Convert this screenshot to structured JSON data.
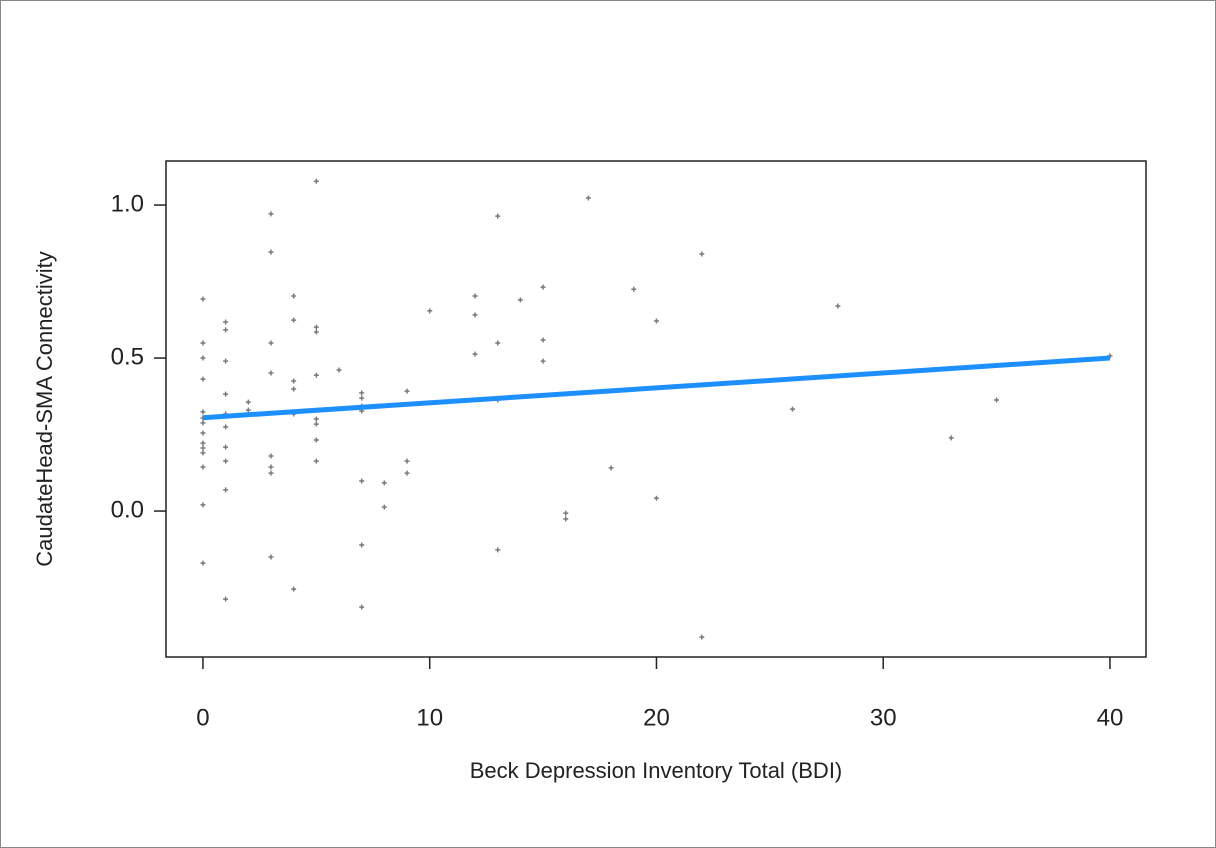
{
  "chart_data": {
    "type": "scatter",
    "xlabel": "Beck Depression Inventory Total (BDI)",
    "ylabel": "CaudateHead-SMA Connectivity",
    "x": [
      0,
      0,
      0,
      0,
      0,
      0,
      0,
      0,
      0,
      0,
      0,
      0,
      0,
      0,
      1,
      1,
      1,
      1,
      1,
      1,
      1,
      1,
      1,
      1,
      2,
      2,
      3,
      3,
      3,
      3,
      3,
      3,
      3,
      3,
      4,
      4,
      4,
      4,
      4,
      4,
      5,
      5,
      5,
      5,
      5,
      5,
      5,
      5,
      6,
      7,
      7,
      7,
      7,
      7,
      7,
      7,
      8,
      8,
      9,
      9,
      9,
      10,
      12,
      12,
      12,
      13,
      13,
      13,
      13,
      14,
      15,
      15,
      15,
      16,
      16,
      17,
      18,
      19,
      20,
      20,
      22,
      22,
      26,
      28,
      33,
      35,
      40
    ],
    "values": [
      0.693,
      0.549,
      0.5,
      0.431,
      0.324,
      0.304,
      0.288,
      0.255,
      0.222,
      0.206,
      0.19,
      0.144,
      0.02,
      -0.17,
      0.618,
      0.592,
      0.49,
      0.382,
      0.317,
      0.275,
      0.209,
      0.163,
      0.069,
      -0.288,
      0.356,
      0.33,
      0.971,
      0.846,
      0.549,
      0.451,
      0.18,
      0.144,
      0.124,
      -0.15,
      0.703,
      0.624,
      0.425,
      0.399,
      0.317,
      -0.255,
      1.078,
      0.601,
      0.585,
      0.444,
      0.301,
      0.284,
      0.232,
      0.163,
      0.461,
      0.386,
      0.369,
      0.343,
      0.327,
      0.098,
      -0.111,
      -0.314,
      0.092,
      0.013,
      0.392,
      0.163,
      0.124,
      0.654,
      0.703,
      0.641,
      0.513,
      0.964,
      0.549,
      0.363,
      -0.127,
      0.69,
      0.732,
      0.559,
      0.49,
      -0.007,
      -0.026,
      1.023,
      0.141,
      0.725,
      0.621,
      0.042,
      0.84,
      -0.412,
      0.333,
      0.67,
      0.239,
      0.363,
      0.507
    ],
    "color": "#7a7a7a",
    "fit": {
      "x": [
        0,
        40
      ],
      "values": [
        0.305,
        0.5
      ],
      "color": "#1e8fff"
    },
    "xlim": [
      -1.63,
      41.59
    ],
    "ylim": [
      -0.477,
      1.144
    ],
    "xticks": [
      0,
      10,
      20,
      30,
      40
    ],
    "yticks": [
      {
        "value": 0,
        "label": "0.0"
      },
      {
        "value": 0.5,
        "label": "0.5"
      },
      {
        "value": 1,
        "label": "1.0"
      }
    ]
  }
}
